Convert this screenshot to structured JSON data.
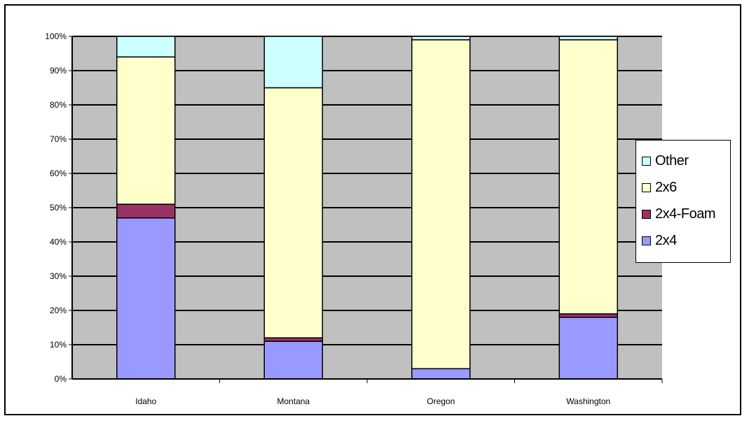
{
  "chart_data": {
    "type": "bar",
    "stacked": "percent",
    "categories": [
      "Idaho",
      "Montana",
      "Oregon",
      "Washington"
    ],
    "series": [
      {
        "name": "2x4",
        "color": "#9999ff",
        "values": [
          47,
          11,
          3,
          18
        ]
      },
      {
        "name": "2x4-Foam",
        "color": "#993366",
        "values": [
          4,
          1,
          0,
          1
        ]
      },
      {
        "name": "2x6",
        "color": "#ffffcc",
        "values": [
          43,
          73,
          96,
          80
        ]
      },
      {
        "name": "Other",
        "color": "#ccffff",
        "values": [
          6,
          15,
          1,
          1
        ]
      }
    ],
    "y_ticks": [
      "0%",
      "10%",
      "20%",
      "30%",
      "40%",
      "50%",
      "60%",
      "70%",
      "80%",
      "90%",
      "100%"
    ],
    "ylim": [
      0,
      100
    ],
    "grid": true,
    "plot_background": "#c0c0c0",
    "legend_position": "right",
    "legend_order": [
      "Other",
      "2x6",
      "2x4-Foam",
      "2x4"
    ]
  }
}
